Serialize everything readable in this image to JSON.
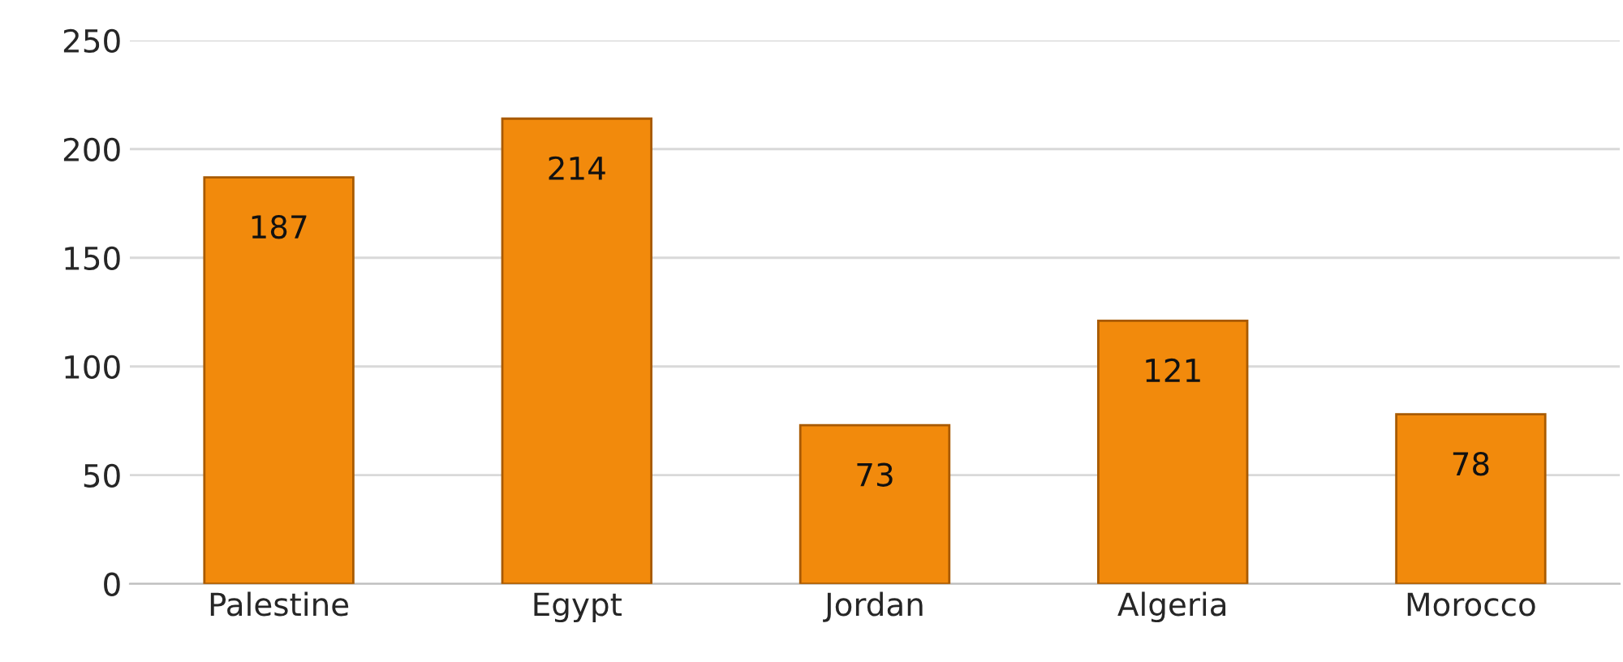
{
  "chart_data": {
    "type": "bar",
    "categories": [
      "Palestine",
      "Egypt",
      "Jordan",
      "Algeria",
      "Morocco"
    ],
    "values": [
      187,
      214,
      73,
      121,
      78
    ],
    "color": "#f28a0c",
    "ylim": [
      0,
      250
    ],
    "yticks": [
      0,
      50,
      100,
      150,
      200,
      250
    ],
    "grid": "y",
    "data_labels": true
  }
}
